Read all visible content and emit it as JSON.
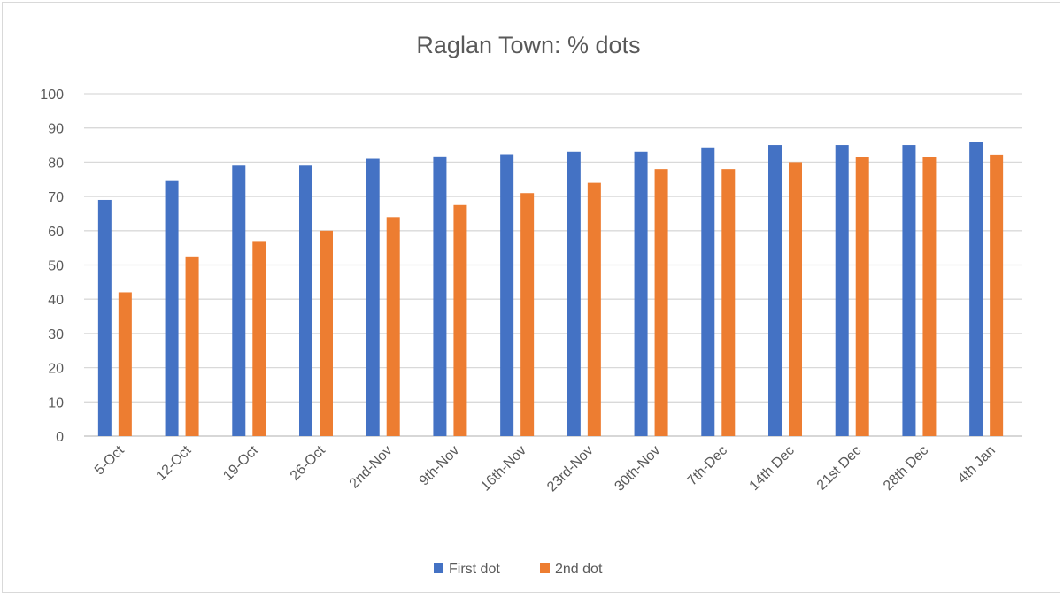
{
  "chart_data": {
    "type": "bar",
    "title": "Raglan Town: % dots",
    "xlabel": "",
    "ylabel": "",
    "ylim": [
      0,
      100
    ],
    "yticks": [
      0,
      10,
      20,
      30,
      40,
      50,
      60,
      70,
      80,
      90,
      100
    ],
    "grid": true,
    "legend_position": "bottom",
    "categories": [
      "5-Oct",
      "12-Oct",
      "19-Oct",
      "26-Oct",
      "2nd-Nov",
      "9th-Nov",
      "16th-Nov",
      "23rd-Nov",
      "30th-Nov",
      "7th-Dec",
      "14th Dec",
      "21st Dec",
      "28th Dec",
      "4th Jan"
    ],
    "series": [
      {
        "name": "First dot",
        "color": "#4472c4",
        "values": [
          69,
          74.5,
          79,
          79,
          81,
          81.7,
          82.3,
          83,
          83,
          84.3,
          85,
          85,
          85,
          85.8
        ]
      },
      {
        "name": "2nd dot",
        "color": "#ed7d31",
        "values": [
          42,
          52.5,
          57,
          60,
          64,
          67.5,
          71,
          74,
          78,
          78,
          80,
          81.5,
          81.5,
          82.2
        ]
      }
    ]
  }
}
